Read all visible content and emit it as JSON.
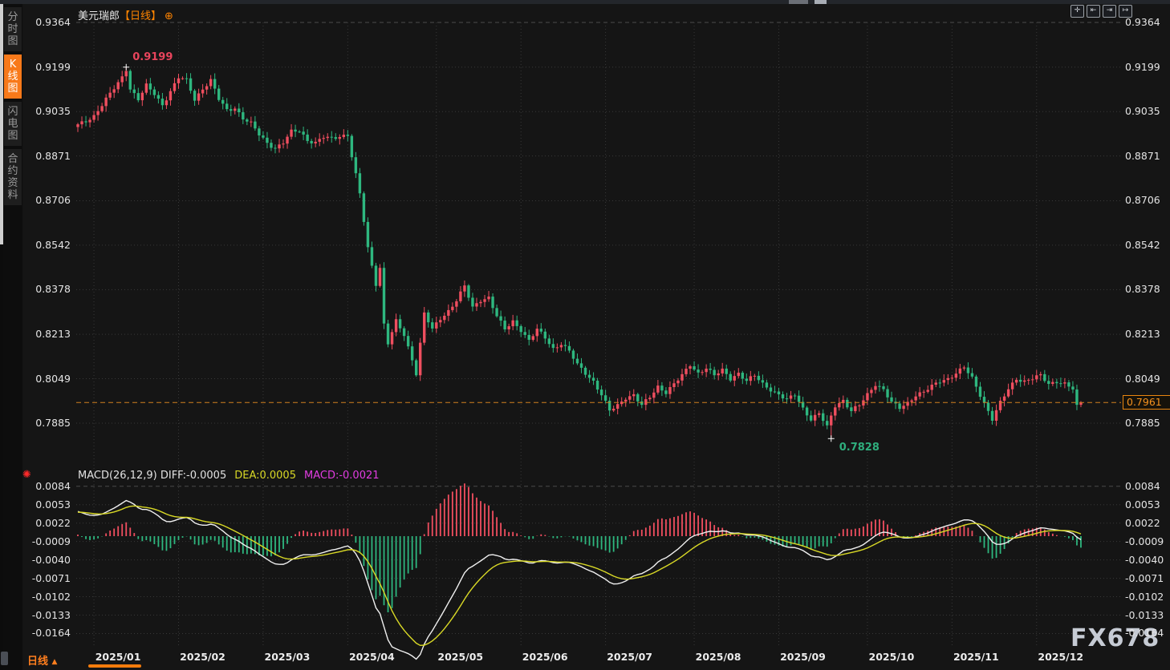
{
  "sidebar": {
    "tabs": [
      {
        "label": "分时图",
        "active": false
      },
      {
        "label": "K线图",
        "active": true
      },
      {
        "label": "闪电图",
        "active": false
      },
      {
        "label": "合约资料",
        "active": false
      }
    ]
  },
  "header": {
    "symbol": "美元瑞郎",
    "period_tag": "【日线】",
    "gear_glyph": "⊕"
  },
  "toolbar": {
    "icons": [
      {
        "name": "move-tool-icon",
        "glyph": "✛"
      },
      {
        "name": "scale-left-icon",
        "glyph": "⇤"
      },
      {
        "name": "scale-right-icon",
        "glyph": "⇥"
      },
      {
        "name": "shift-right-icon",
        "glyph": "↦"
      }
    ]
  },
  "macd_header": {
    "main": "MACD(26,12,9) DIFF:-0.0005",
    "dea": "DEA:0.0005",
    "macd": "MACD:-0.0021"
  },
  "annotations": {
    "high_label": "0.9199",
    "low_label": "0.7828",
    "last_price_label": "0.7961"
  },
  "bottom_bar": {
    "period_label": "日线",
    "arrow": "▲"
  },
  "watermark": "FX678",
  "x_axis": {
    "labels": [
      "2025/01",
      "2025/02",
      "2025/03",
      "2025/04",
      "2025/05",
      "2025/06",
      "2025/07",
      "2025/08",
      "2025/09",
      "2025/10",
      "2025/11",
      "2025/12"
    ]
  },
  "colors": {
    "up_candle": "#ef4e5f",
    "down_candle": "#2eb77f",
    "accent_orange": "#f5821f",
    "diff_line": "#f0f0f0",
    "dea_line": "#d9d926",
    "macd_label_magenta": "#e13ce1",
    "grid": "#383838",
    "axis_text": "#e4e4e4"
  },
  "chart_data": {
    "type": "candlestick+macd",
    "symbol": "USD/CHF 美元瑞郎",
    "timeframe": "daily",
    "title": "美元瑞郎【日线】",
    "x_range": [
      "2025/01",
      "2025/12"
    ],
    "price_axis_ticks": [
      0.9364,
      0.9199,
      0.9035,
      0.8871,
      0.8706,
      0.8542,
      0.8378,
      0.8213,
      0.8049,
      0.7885
    ],
    "macd_axis_ticks": [
      0.0084,
      0.0053,
      0.0022,
      -0.0009,
      -0.004,
      -0.0071,
      -0.0102,
      -0.0133,
      -0.0164
    ],
    "key_points": {
      "high": {
        "index": 12,
        "price": 0.9199
      },
      "low": {
        "index": 187,
        "price": 0.7828
      },
      "last": {
        "index": 249,
        "price": 0.7961
      }
    },
    "macd_current": {
      "diff": -0.0005,
      "dea": 0.0005,
      "macd": -0.0021
    },
    "num_candles": 250,
    "month_start_indices": [
      4,
      25,
      46,
      67,
      89,
      110,
      131,
      153,
      174,
      196,
      217,
      238
    ],
    "close_anchors": [
      [
        0,
        0.8985
      ],
      [
        2,
        0.9
      ],
      [
        4,
        0.902
      ],
      [
        6,
        0.906
      ],
      [
        8,
        0.91
      ],
      [
        10,
        0.914
      ],
      [
        12,
        0.9185
      ],
      [
        13,
        0.912
      ],
      [
        15,
        0.908
      ],
      [
        17,
        0.913
      ],
      [
        19,
        0.91
      ],
      [
        21,
        0.906
      ],
      [
        23,
        0.911
      ],
      [
        25,
        0.916
      ],
      [
        27,
        0.915
      ],
      [
        29,
        0.908
      ],
      [
        31,
        0.912
      ],
      [
        33,
        0.915
      ],
      [
        35,
        0.908
      ],
      [
        37,
        0.904
      ],
      [
        39,
        0.905
      ],
      [
        41,
        0.901
      ],
      [
        43,
        0.899
      ],
      [
        45,
        0.895
      ],
      [
        47,
        0.892
      ],
      [
        49,
        0.89
      ],
      [
        51,
        0.892
      ],
      [
        53,
        0.896
      ],
      [
        55,
        0.8965
      ],
      [
        57,
        0.893
      ],
      [
        59,
        0.892
      ],
      [
        61,
        0.894
      ],
      [
        63,
        0.8935
      ],
      [
        65,
        0.8945
      ],
      [
        67,
        0.895
      ],
      [
        68,
        0.887
      ],
      [
        70,
        0.873
      ],
      [
        72,
        0.853
      ],
      [
        74,
        0.84
      ],
      [
        75,
        0.846
      ],
      [
        76,
        0.825
      ],
      [
        77,
        0.818
      ],
      [
        79,
        0.826
      ],
      [
        81,
        0.821
      ],
      [
        83,
        0.812
      ],
      [
        84,
        0.807
      ],
      [
        86,
        0.829
      ],
      [
        88,
        0.823
      ],
      [
        90,
        0.827
      ],
      [
        92,
        0.83
      ],
      [
        94,
        0.834
      ],
      [
        96,
        0.839
      ],
      [
        98,
        0.831
      ],
      [
        100,
        0.834
      ],
      [
        102,
        0.835
      ],
      [
        104,
        0.828
      ],
      [
        106,
        0.823
      ],
      [
        108,
        0.826
      ],
      [
        110,
        0.823
      ],
      [
        112,
        0.819
      ],
      [
        114,
        0.823
      ],
      [
        116,
        0.82
      ],
      [
        118,
        0.816
      ],
      [
        120,
        0.818
      ],
      [
        122,
        0.815
      ],
      [
        124,
        0.81
      ],
      [
        126,
        0.807
      ],
      [
        128,
        0.804
      ],
      [
        130,
        0.799
      ],
      [
        132,
        0.793
      ],
      [
        134,
        0.795
      ],
      [
        136,
        0.798
      ],
      [
        138,
        0.799
      ],
      [
        140,
        0.795
      ],
      [
        142,
        0.798
      ],
      [
        144,
        0.802
      ],
      [
        146,
        0.8
      ],
      [
        148,
        0.803
      ],
      [
        150,
        0.806
      ],
      [
        152,
        0.81
      ],
      [
        154,
        0.807
      ],
      [
        156,
        0.809
      ],
      [
        158,
        0.806
      ],
      [
        160,
        0.808
      ],
      [
        162,
        0.805
      ],
      [
        164,
        0.807
      ],
      [
        166,
        0.804
      ],
      [
        168,
        0.806
      ],
      [
        170,
        0.803
      ],
      [
        172,
        0.801
      ],
      [
        174,
        0.799
      ],
      [
        176,
        0.797
      ],
      [
        178,
        0.799
      ],
      [
        180,
        0.794
      ],
      [
        182,
        0.79
      ],
      [
        184,
        0.792
      ],
      [
        186,
        0.787
      ],
      [
        188,
        0.795
      ],
      [
        190,
        0.797
      ],
      [
        192,
        0.793
      ],
      [
        194,
        0.795
      ],
      [
        196,
        0.799
      ],
      [
        198,
        0.803
      ],
      [
        200,
        0.801
      ],
      [
        202,
        0.796
      ],
      [
        204,
        0.794
      ],
      [
        206,
        0.796
      ],
      [
        208,
        0.799
      ],
      [
        210,
        0.8
      ],
      [
        212,
        0.802
      ],
      [
        214,
        0.804
      ],
      [
        216,
        0.805
      ],
      [
        218,
        0.807
      ],
      [
        220,
        0.809
      ],
      [
        222,
        0.805
      ],
      [
        224,
        0.799
      ],
      [
        226,
        0.793
      ],
      [
        227,
        0.79
      ],
      [
        229,
        0.796
      ],
      [
        231,
        0.801
      ],
      [
        233,
        0.805
      ],
      [
        235,
        0.804
      ],
      [
        237,
        0.805
      ],
      [
        239,
        0.806
      ],
      [
        241,
        0.803
      ],
      [
        243,
        0.804
      ],
      [
        245,
        0.803
      ],
      [
        247,
        0.801
      ],
      [
        248,
        0.7945
      ],
      [
        249,
        0.7961
      ]
    ]
  }
}
